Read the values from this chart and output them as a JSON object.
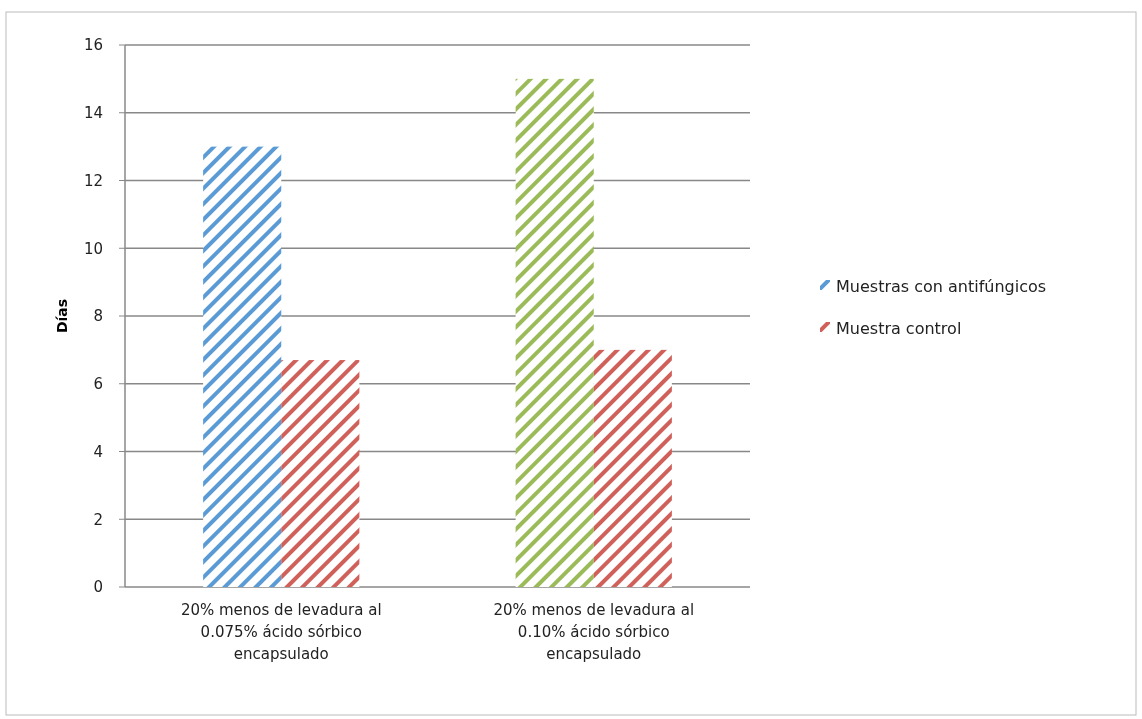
{
  "chart_data": {
    "type": "bar",
    "ylabel": "Días",
    "categories": [
      "20% menos de levadura al 0.075% ácido sórbico encapsulado",
      "20%  menos de levadura al 0.10% ácido sórbico encapsulado"
    ],
    "series": [
      {
        "name": "Muestras con antifúngicos",
        "color": "#5b9bd5",
        "colors": [
          "#5b9bd5",
          "#9bbb59"
        ],
        "values": [
          13,
          15
        ]
      },
      {
        "name": "Muestra control",
        "color": "#d0605a",
        "values": [
          6.7,
          7.0
        ]
      }
    ],
    "ylim": [
      0,
      16
    ],
    "yticks": [
      0,
      2,
      4,
      6,
      8,
      10,
      12,
      14,
      16
    ],
    "grid": "y",
    "legend": "right"
  }
}
